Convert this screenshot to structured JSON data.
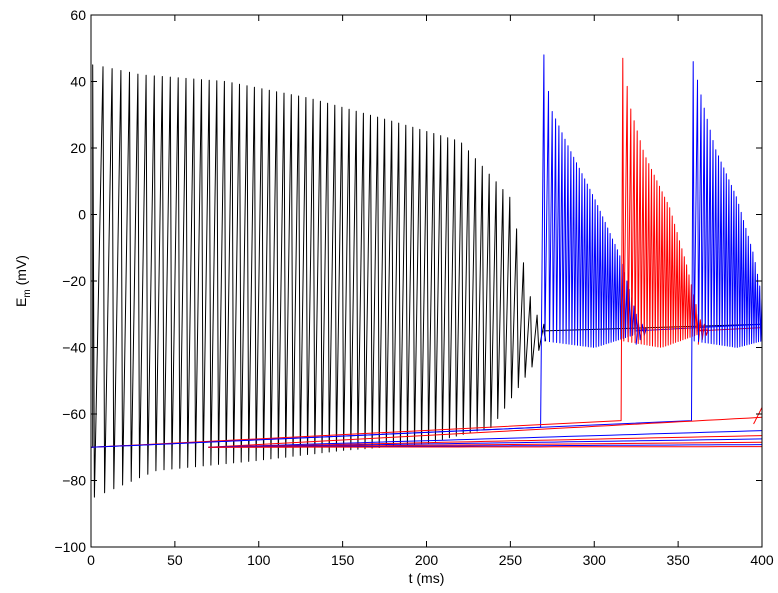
{
  "chart_data": {
    "type": "line",
    "title": "",
    "xlabel": "t (ms)",
    "ylabel_main": "E",
    "ylabel_sub": "m",
    "ylabel_unit": " (mV)",
    "xlim": [
      0,
      400
    ],
    "ylim": [
      -100,
      60
    ],
    "grid": false,
    "xticks": [
      0,
      50,
      100,
      150,
      200,
      250,
      300,
      350,
      400
    ],
    "yticks": [
      -100,
      -80,
      -60,
      -40,
      -20,
      0,
      20,
      40,
      60
    ],
    "colors": {
      "black": "#000000",
      "blue": "#0000ff",
      "red": "#ff0000"
    },
    "series": [
      {
        "color": "black",
        "onset_ms": 1,
        "rest_mV": -70,
        "spike_count": 62,
        "spike_peaks_mV": [
          [
            2,
            45
          ],
          [
            30,
            42
          ],
          [
            80,
            40
          ],
          [
            130,
            35
          ],
          [
            180,
            28
          ],
          [
            220,
            22
          ],
          [
            250,
            5
          ],
          [
            262,
            -25
          ],
          [
            268,
            -33
          ]
        ],
        "trough_mV": [
          [
            3,
            -85
          ],
          [
            40,
            -77
          ],
          [
            100,
            -74
          ],
          [
            150,
            -71
          ],
          [
            200,
            -69
          ],
          [
            240,
            -64
          ],
          [
            265,
            -45
          ],
          [
            270,
            -38
          ]
        ],
        "plateau": [
          [
            270,
            -35
          ],
          [
            400,
            -33
          ]
        ]
      },
      {
        "color": "blue",
        "onset_ms": 270,
        "ramp": [
          [
            0,
            -70
          ],
          [
            268,
            -64
          ]
        ],
        "spike_peaks_mV": [
          [
            270,
            48
          ],
          [
            274,
            32
          ],
          [
            285,
            20
          ],
          [
            300,
            5
          ],
          [
            315,
            -12
          ],
          [
            325,
            -30
          ]
        ],
        "trough_mV": [
          [
            270,
            -38
          ],
          [
            300,
            -40
          ],
          [
            325,
            -36
          ]
        ],
        "plateau": [
          [
            325,
            -35
          ],
          [
            400,
            -33
          ]
        ]
      },
      {
        "color": "red",
        "onset_ms": 317,
        "ramp": [
          [
            0,
            -70
          ],
          [
            316,
            -62
          ]
        ],
        "spike_peaks_mV": [
          [
            317,
            47
          ],
          [
            322,
            31
          ],
          [
            330,
            18
          ],
          [
            345,
            2
          ],
          [
            355,
            -15
          ],
          [
            362,
            -30
          ]
        ],
        "trough_mV": [
          [
            317,
            -38
          ],
          [
            340,
            -40
          ],
          [
            362,
            -36
          ]
        ],
        "plateau": [
          [
            362,
            -35
          ],
          [
            400,
            -34
          ]
        ]
      },
      {
        "color": "blue",
        "onset_ms": 359,
        "ramp": [
          [
            0,
            -70
          ],
          [
            358,
            -62
          ]
        ],
        "spike_peaks_mV": [
          [
            359,
            46
          ],
          [
            365,
            33
          ],
          [
            372,
            20
          ],
          [
            385,
            5
          ],
          [
            395,
            -12
          ],
          [
            400,
            -25
          ]
        ],
        "trough_mV": [
          [
            359,
            -38
          ],
          [
            385,
            -40
          ],
          [
            400,
            -38
          ]
        ],
        "plateau": []
      },
      {
        "color": "red",
        "onset_ms": null,
        "ramp": [
          [
            70,
            -70
          ],
          [
            400,
            -61
          ]
        ]
      },
      {
        "color": "blue",
        "onset_ms": null,
        "ramp": [
          [
            70,
            -70
          ],
          [
            400,
            -65
          ]
        ]
      },
      {
        "color": "red",
        "onset_ms": null,
        "ramp": [
          [
            70,
            -70
          ],
          [
            400,
            -66.5
          ]
        ]
      },
      {
        "color": "blue",
        "onset_ms": null,
        "ramp": [
          [
            70,
            -70
          ],
          [
            400,
            -67.5
          ]
        ]
      },
      {
        "color": "red",
        "onset_ms": null,
        "ramp": [
          [
            70,
            -70
          ],
          [
            400,
            -68.5
          ]
        ]
      },
      {
        "color": "blue",
        "onset_ms": null,
        "ramp": [
          [
            70,
            -70
          ],
          [
            400,
            -69.2
          ]
        ]
      },
      {
        "color": "red",
        "onset_ms": null,
        "ramp": [
          [
            70,
            -70
          ],
          [
            400,
            -69.8
          ]
        ]
      },
      {
        "color": "red",
        "onset_ms": null,
        "ramp": [
          [
            395,
            -63
          ],
          [
            400,
            -58
          ]
        ]
      }
    ]
  }
}
